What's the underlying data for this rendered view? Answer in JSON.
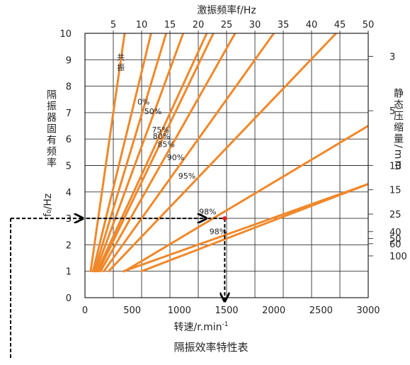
{
  "chart_data": {
    "type": "line",
    "title": "隔振效率特性表",
    "xlabel": "转速/r.min",
    "xlabel_sup": "-1",
    "ylabel": "隔振器固有频率",
    "ylabel_unit": "f₀/Hz",
    "top_axis_title": "激振频率f/Hz",
    "right_axis_title": "静态压缩量/mm",
    "xlim": [
      0,
      3000
    ],
    "ylim": [
      0,
      10
    ],
    "x_ticks": [
      "0",
      "500",
      "1000",
      "1500",
      "2000",
      "2500",
      "3000"
    ],
    "y_ticks": [
      "0",
      "1",
      "2",
      "3",
      "4",
      "5",
      "6",
      "7",
      "8",
      "9",
      "10"
    ],
    "top_ticks": [
      "5",
      "10",
      "15",
      "20",
      "25",
      "30",
      "35",
      "40",
      "45",
      "50"
    ],
    "right_ticks": [
      "3",
      "5",
      "10",
      "15",
      "25",
      "40",
      "50",
      "60",
      "100"
    ],
    "grid": true,
    "line_color": "#f0882a",
    "series": [
      {
        "name": "共振",
        "x": [
          60,
          420
        ],
        "y": [
          1,
          10
        ]
      },
      {
        "x": [
          85,
          700
        ],
        "y": [
          1,
          10
        ]
      },
      {
        "x": [
          100,
          860
        ],
        "y": [
          1,
          10
        ]
      },
      {
        "x": [
          115,
          1040
        ],
        "y": [
          1,
          10
        ]
      },
      {
        "x": [
          130,
          1290
        ],
        "y": [
          1,
          10
        ]
      },
      {
        "x": [
          145,
          1360
        ],
        "y": [
          1,
          10
        ]
      },
      {
        "x": [
          165,
          1590
        ],
        "y": [
          1,
          10
        ]
      },
      {
        "x": [
          200,
          2000
        ],
        "y": [
          1,
          10
        ]
      },
      {
        "x": [
          250,
          2660
        ],
        "y": [
          1,
          10
        ]
      },
      {
        "x": [
          420,
          3000
        ],
        "y": [
          1,
          6.5
        ]
      },
      {
        "x": [
          410,
          3000
        ],
        "y": [
          1,
          4.3
        ]
      },
      {
        "x": [
          600,
          3000
        ],
        "y": [
          1,
          4.3
        ]
      }
    ],
    "annotations": [
      {
        "text": "共",
        "x": 380,
        "y": 9.0
      },
      {
        "text": "振",
        "x": 380,
        "y": 8.6
      },
      {
        "text": "0%",
        "x": 620,
        "y": 7.3
      },
      {
        "text": "50%",
        "x": 720,
        "y": 6.95
      },
      {
        "text": "75%",
        "x": 800,
        "y": 6.25
      },
      {
        "text": "80%",
        "x": 810,
        "y": 6.0
      },
      {
        "text": "85%",
        "x": 860,
        "y": 5.7
      },
      {
        "text": "90%",
        "x": 960,
        "y": 5.2
      },
      {
        "text": "95%",
        "x": 1080,
        "y": 4.5
      },
      {
        "text": "98%",
        "x": 1300,
        "y": 3.15
      },
      {
        "text": "98%",
        "x": 1410,
        "y": 2.4
      }
    ],
    "marker": {
      "x": 1480,
      "y": 3.0,
      "color": "#e8201a"
    },
    "guides": {
      "x": 1480,
      "y": 3.0
    }
  }
}
